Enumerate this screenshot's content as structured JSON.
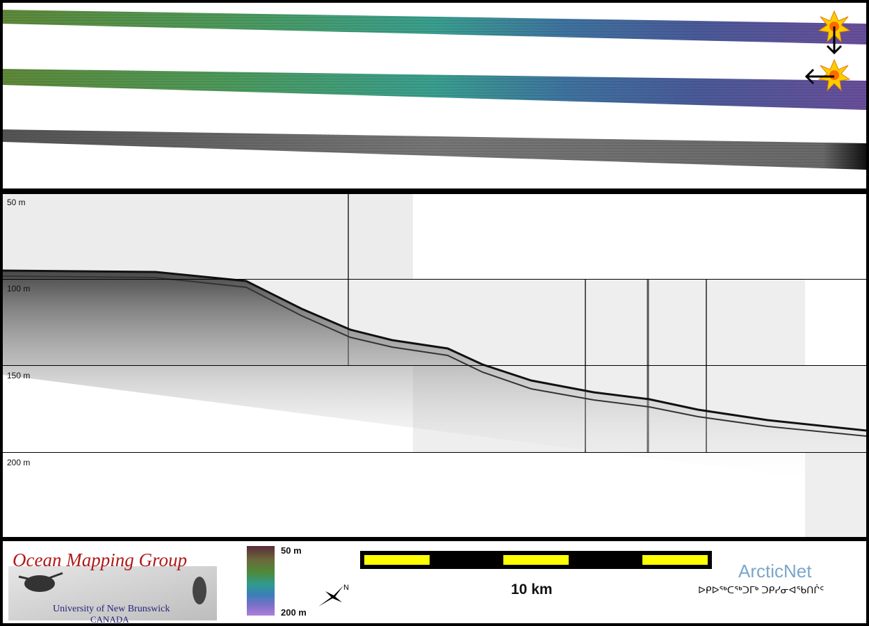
{
  "depth_labels": [
    "50 m",
    "100 m",
    "150 m",
    "200 m"
  ],
  "legend": {
    "colorbar_top": "50 m",
    "colorbar_bottom": "200 m",
    "colors": [
      "#5a2a3a",
      "#6a6a3a",
      "#4e8a3a",
      "#2f9a8e",
      "#3a7fb8",
      "#7a6fc8",
      "#b080d8"
    ]
  },
  "scale": {
    "label": "10 km"
  },
  "logos": {
    "omg_title": "Ocean Mapping Group",
    "omg_sub1": "University of New Brunswick",
    "omg_sub2": "CANADA",
    "arcticnet": "ArcticNet",
    "arcticnet_syllabics": "ᐅᑭᐅᖅᑕᖅᑐᒥᒃ ᑐᑭᓯᓂᐊᖃᑎᒌᑦ"
  },
  "icons": [
    "sun-marker-icon",
    "down-arrow-icon",
    "left-arrow-icon",
    "north-arrow-icon"
  ],
  "colors": {
    "background": "#000000",
    "panel": "#ffffff",
    "scale_yellow": "#ffff00",
    "omg_red": "#b01818",
    "omg_blue": "#23237a",
    "arcticnet_blue": "#7aa6cc"
  }
}
